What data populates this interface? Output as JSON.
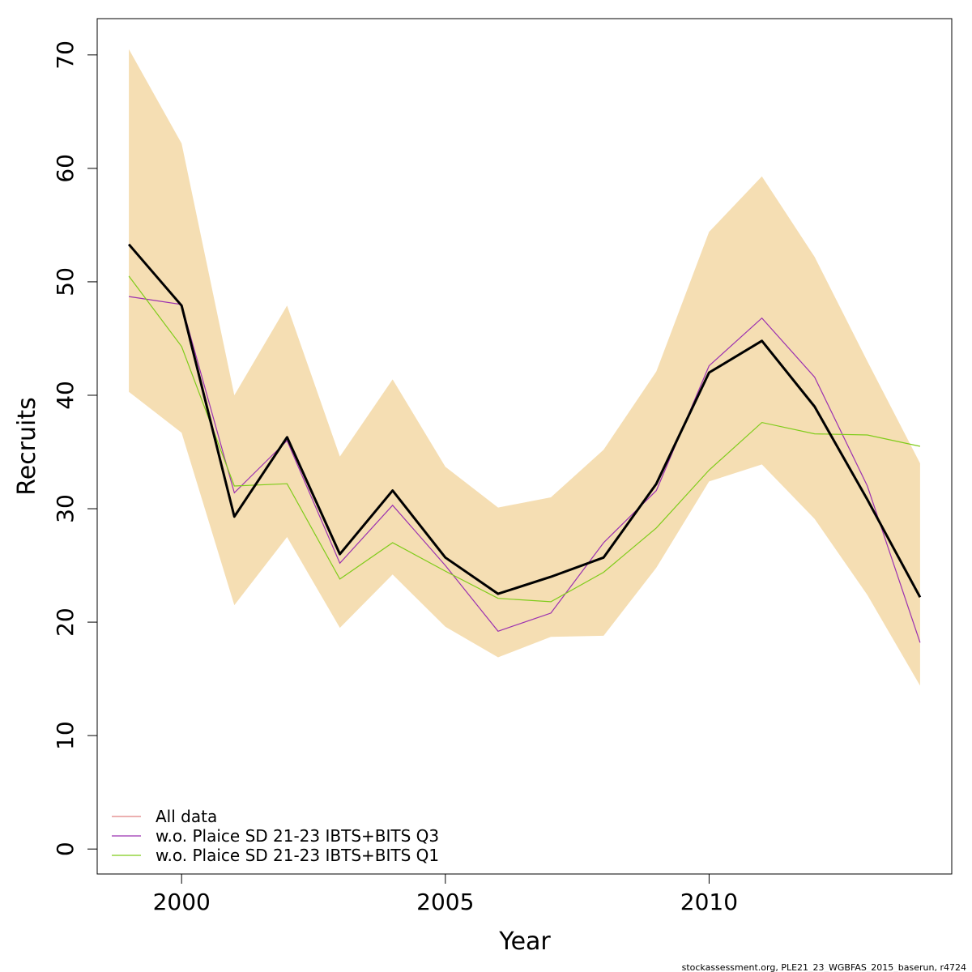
{
  "chart_data": {
    "type": "line",
    "xlabel": "Year",
    "ylabel": "Recruits",
    "xlim": [
      1998.4,
      2014.6
    ],
    "ylim": [
      -2.2,
      73.2
    ],
    "x_ticks": [
      2000,
      2005,
      2010
    ],
    "y_ticks": [
      0,
      10,
      20,
      30,
      40,
      50,
      60,
      70
    ],
    "x": [
      1999,
      2000,
      2001,
      2002,
      2003,
      2004,
      2005,
      2006,
      2007,
      2008,
      2009,
      2010,
      2011,
      2012,
      2013,
      2014
    ],
    "band": {
      "color": "#F5DEB3",
      "lower": [
        40.3,
        36.7,
        21.5,
        27.5,
        19.5,
        24.2,
        19.6,
        16.9,
        18.7,
        18.8,
        24.8,
        32.4,
        33.9,
        29.1,
        22.4,
        14.4
      ],
      "upper": [
        70.5,
        62.2,
        40.0,
        47.9,
        34.6,
        41.4,
        33.7,
        30.1,
        31.0,
        35.2,
        42.1,
        54.4,
        59.3,
        52.2,
        43.0,
        34.0
      ]
    },
    "main_line": {
      "color": "#000000",
      "values": [
        53.3,
        47.9,
        29.3,
        36.3,
        26.0,
        31.6,
        25.7,
        22.5,
        24.0,
        25.7,
        32.2,
        42.0,
        44.8,
        39.0,
        30.8,
        22.2
      ]
    },
    "series": [
      {
        "name": "All data",
        "color": "#E08080",
        "values": [
          53.3,
          47.9,
          29.3,
          36.3,
          26.0,
          31.6,
          25.7,
          22.5,
          24.0,
          25.7,
          32.2,
          42.0,
          44.8,
          39.0,
          30.8,
          22.2
        ]
      },
      {
        "name": "w.o. Plaice SD 21-23 IBTS+BITS Q3",
        "color": "#9B30B0",
        "values": [
          48.7,
          48.0,
          31.4,
          36.0,
          25.2,
          30.3,
          25.0,
          19.2,
          20.8,
          27.0,
          31.6,
          42.6,
          46.8,
          41.6,
          32.0,
          18.2
        ]
      },
      {
        "name": "w.o. Plaice SD 21-23 IBTS+BITS Q1",
        "color": "#7FCC1A",
        "values": [
          50.5,
          44.3,
          32.0,
          32.2,
          23.8,
          27.0,
          24.5,
          22.1,
          21.8,
          24.4,
          28.3,
          33.4,
          37.6,
          36.6,
          36.5,
          35.5
        ]
      }
    ],
    "legend_position": "bottom-left",
    "footnote": "stockassessment.org, PLE21_23_WGBFAS_2015_baserun, r4724"
  }
}
